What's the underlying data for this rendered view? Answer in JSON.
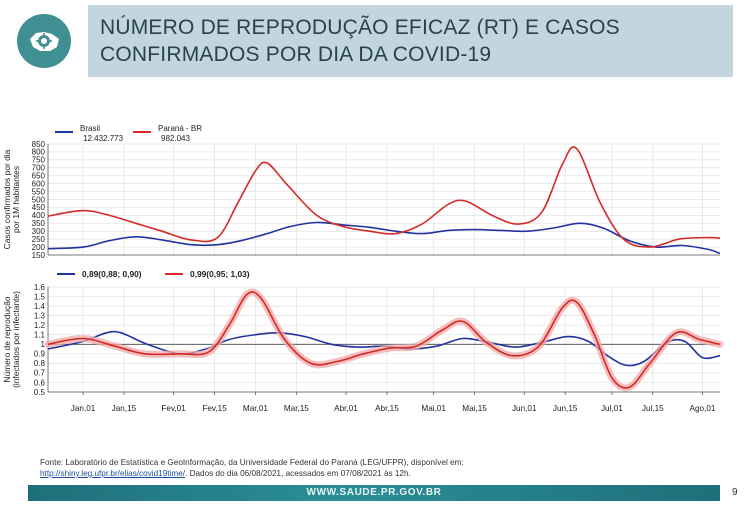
{
  "header": {
    "title": "NÚMERO DE REPRODUÇÃO EFICAZ (RT) E CASOS CONFIRMADOS POR DIA DA COVID-19",
    "logo_icon": "virus-parana-map-icon"
  },
  "source": {
    "line1": "Fonte: Laboratório de Estatística e GeoInformação, da Universidade Federal do Paraná (LEG/UFPR), disponível em:",
    "link": "http://shiny.leg.ufpr.br/elias/covid19time/",
    "line2": ". Dados do dia 06/08/2021, acessados em 07/08/2021 às 12h."
  },
  "footer": {
    "url": "WWW.SAUDE.PR.GOV.BR",
    "page": "9"
  },
  "colors": {
    "brasil": "#2233a0",
    "parana": "#d42a26",
    "band": "#f3a9a9",
    "title_bg": "#c3d6df",
    "footer": "#1f6f7a"
  },
  "chart_data": [
    {
      "type": "line",
      "ylabel": "Casos confirmados por dia por 1M habitantes",
      "ylim": [
        150,
        850
      ],
      "yticks": [
        150,
        200,
        250,
        300,
        350,
        400,
        450,
        500,
        550,
        600,
        650,
        700,
        750,
        800,
        850
      ],
      "x_ticks": [
        "Jan,01",
        "Jan,15",
        "Fev,01",
        "Fev,15",
        "Mar,01",
        "Mar,15",
        "Abr,01",
        "Abr,15",
        "Mai,01",
        "Mai,15",
        "Jun,01",
        "Jun,15",
        "Jul,01",
        "Jul,15",
        "Ago,01"
      ],
      "x_tick_dates": [
        "2021-01-01",
        "2021-01-15",
        "2021-02-01",
        "2021-02-15",
        "2021-03-01",
        "2021-03-15",
        "2021-04-01",
        "2021-04-15",
        "2021-05-01",
        "2021-05-15",
        "2021-06-01",
        "2021-06-15",
        "2021-07-01",
        "2021-07-15",
        "2021-08-01"
      ],
      "grid": true,
      "legend": [
        {
          "name": "Brasil",
          "detail": "12.432.773"
        },
        {
          "name": "Paraná - BR",
          "detail": "982.043"
        }
      ],
      "series": [
        {
          "name": "Brasil",
          "color": "#2233a0",
          "points": [
            [
              "2020-12-20",
              190
            ],
            [
              "2021-01-01",
              200
            ],
            [
              "2021-01-10",
              240
            ],
            [
              "2021-01-19",
              265
            ],
            [
              "2021-01-28",
              245
            ],
            [
              "2021-02-07",
              215
            ],
            [
              "2021-02-16",
              215
            ],
            [
              "2021-02-24",
              240
            ],
            [
              "2021-03-05",
              285
            ],
            [
              "2021-03-13",
              330
            ],
            [
              "2021-03-22",
              355
            ],
            [
              "2021-03-31",
              340
            ],
            [
              "2021-04-09",
              325
            ],
            [
              "2021-04-18",
              300
            ],
            [
              "2021-04-27",
              285
            ],
            [
              "2021-05-06",
              305
            ],
            [
              "2021-05-15",
              310
            ],
            [
              "2021-05-24",
              305
            ],
            [
              "2021-06-02",
              300
            ],
            [
              "2021-06-11",
              320
            ],
            [
              "2021-06-20",
              350
            ],
            [
              "2021-06-28",
              320
            ],
            [
              "2021-07-07",
              240
            ],
            [
              "2021-07-16",
              200
            ],
            [
              "2021-07-25",
              210
            ],
            [
              "2021-08-03",
              185
            ],
            [
              "2021-08-07",
              160
            ]
          ]
        },
        {
          "name": "Paraná - BR",
          "color": "#d42a26",
          "points": [
            [
              "2020-12-20",
              395
            ],
            [
              "2021-01-01",
              430
            ],
            [
              "2021-01-10",
              400
            ],
            [
              "2021-01-19",
              350
            ],
            [
              "2021-01-28",
              300
            ],
            [
              "2021-02-07",
              245
            ],
            [
              "2021-02-16",
              260
            ],
            [
              "2021-02-23",
              480
            ],
            [
              "2021-03-01",
              680
            ],
            [
              "2021-03-05",
              730
            ],
            [
              "2021-03-12",
              590
            ],
            [
              "2021-03-22",
              400
            ],
            [
              "2021-03-31",
              330
            ],
            [
              "2021-04-09",
              300
            ],
            [
              "2021-04-18",
              285
            ],
            [
              "2021-04-27",
              345
            ],
            [
              "2021-05-06",
              470
            ],
            [
              "2021-05-12",
              490
            ],
            [
              "2021-05-21",
              400
            ],
            [
              "2021-05-30",
              345
            ],
            [
              "2021-06-07",
              420
            ],
            [
              "2021-06-14",
              720
            ],
            [
              "2021-06-19",
              820
            ],
            [
              "2021-06-27",
              480
            ],
            [
              "2021-07-05",
              250
            ],
            [
              "2021-07-14",
              200
            ],
            [
              "2021-07-24",
              250
            ],
            [
              "2021-08-03",
              260
            ],
            [
              "2021-08-07",
              255
            ]
          ]
        }
      ]
    },
    {
      "type": "line",
      "ylabel": "Número de reprodução (infectados por infectante)",
      "ylim": [
        0.5,
        1.6
      ],
      "yticks": [
        0.5,
        0.6,
        0.7,
        0.8,
        0.9,
        1.0,
        1.1,
        1.2,
        1.3,
        1.4,
        1.5,
        1.6
      ],
      "ytick_labels": [
        "0.5",
        "0.6",
        "0.7",
        "0.8",
        "0.9",
        "1",
        "1.1",
        "1.2",
        "1.3",
        "1.4",
        "1.5",
        "1.6"
      ],
      "x_ticks": [
        "Jan,01",
        "Jan,15",
        "Fev,01",
        "Fev,15",
        "Mar,01",
        "Mar,15",
        "Abr,01",
        "Abr,15",
        "Mai,01",
        "Mai,15",
        "Jun,01",
        "Jun,15",
        "Jul,01",
        "Jul,15",
        "Ago,01"
      ],
      "x_tick_dates": [
        "2021-01-01",
        "2021-01-15",
        "2021-02-01",
        "2021-02-15",
        "2021-03-01",
        "2021-03-15",
        "2021-04-01",
        "2021-04-15",
        "2021-05-01",
        "2021-05-15",
        "2021-06-01",
        "2021-06-15",
        "2021-07-01",
        "2021-07-15",
        "2021-08-01"
      ],
      "reference_line": 1.0,
      "grid": true,
      "legend": [
        {
          "label": "0,89(0,88; 0,90)"
        },
        {
          "label": "0,99(0,95; 1,03)"
        }
      ],
      "series": [
        {
          "label": "0,89(0,88; 0,90)",
          "color": "#2233a0",
          "points": [
            [
              "2020-12-20",
              0.95
            ],
            [
              "2021-01-01",
              1.03
            ],
            [
              "2021-01-09",
              1.12
            ],
            [
              "2021-01-14",
              1.12
            ],
            [
              "2021-01-23",
              1.0
            ],
            [
              "2021-02-03",
              0.9
            ],
            [
              "2021-02-12",
              0.95
            ],
            [
              "2021-02-20",
              1.05
            ],
            [
              "2021-03-01",
              1.1
            ],
            [
              "2021-03-09",
              1.12
            ],
            [
              "2021-03-18",
              1.08
            ],
            [
              "2021-03-27",
              1.0
            ],
            [
              "2021-04-05",
              0.97
            ],
            [
              "2021-04-14",
              0.98
            ],
            [
              "2021-04-23",
              0.95
            ],
            [
              "2021-05-02",
              0.98
            ],
            [
              "2021-05-11",
              1.06
            ],
            [
              "2021-05-20",
              1.02
            ],
            [
              "2021-05-29",
              0.97
            ],
            [
              "2021-06-07",
              1.02
            ],
            [
              "2021-06-16",
              1.08
            ],
            [
              "2021-06-23",
              1.03
            ],
            [
              "2021-06-30",
              0.87
            ],
            [
              "2021-07-06",
              0.78
            ],
            [
              "2021-07-12",
              0.82
            ],
            [
              "2021-07-20",
              1.02
            ],
            [
              "2021-07-26",
              1.03
            ],
            [
              "2021-08-01",
              0.86
            ],
            [
              "2021-08-07",
              0.88
            ]
          ]
        },
        {
          "label": "0,99(0,95; 1,03)",
          "color": "#d42a26",
          "points": [
            [
              "2020-12-20",
              1.0
            ],
            [
              "2021-01-01",
              1.06
            ],
            [
              "2021-01-12",
              0.98
            ],
            [
              "2021-01-22",
              0.9
            ],
            [
              "2021-02-03",
              0.9
            ],
            [
              "2021-02-13",
              0.92
            ],
            [
              "2021-02-20",
              1.2
            ],
            [
              "2021-02-26",
              1.52
            ],
            [
              "2021-03-03",
              1.48
            ],
            [
              "2021-03-11",
              1.05
            ],
            [
              "2021-03-20",
              0.8
            ],
            [
              "2021-03-29",
              0.82
            ],
            [
              "2021-04-07",
              0.9
            ],
            [
              "2021-04-16",
              0.96
            ],
            [
              "2021-04-25",
              0.98
            ],
            [
              "2021-05-04",
              1.15
            ],
            [
              "2021-05-11",
              1.24
            ],
            [
              "2021-05-19",
              1.02
            ],
            [
              "2021-05-28",
              0.88
            ],
            [
              "2021-06-06",
              0.98
            ],
            [
              "2021-06-14",
              1.38
            ],
            [
              "2021-06-19",
              1.44
            ],
            [
              "2021-06-25",
              1.1
            ],
            [
              "2021-07-01",
              0.65
            ],
            [
              "2021-07-07",
              0.55
            ],
            [
              "2021-07-14",
              0.8
            ],
            [
              "2021-07-23",
              1.12
            ],
            [
              "2021-07-31",
              1.05
            ],
            [
              "2021-08-07",
              1.0
            ]
          ]
        }
      ]
    }
  ]
}
